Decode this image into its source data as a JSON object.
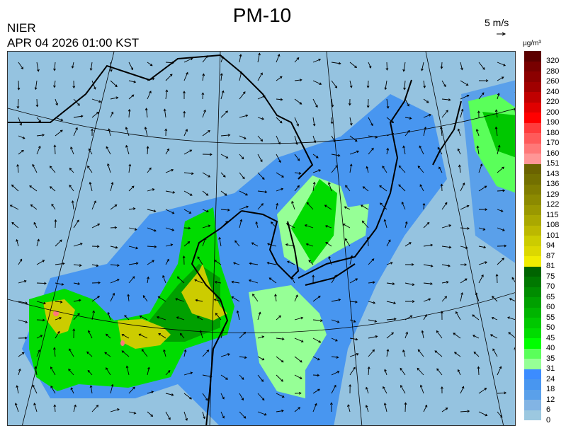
{
  "header": {
    "title": "PM-10",
    "organization": "NIER",
    "datetime": "APR 04 2026 01:00 KST",
    "wind_reference": "5 m/s"
  },
  "map": {
    "variable": "PM-10",
    "region": "East Asia (China, Korea, Japan)",
    "background_color": "#95c3e0",
    "wind_vectors": true,
    "coastlines": true,
    "graticule": true
  },
  "legend": {
    "unit": "µg/m³",
    "labels": [
      "320",
      "280",
      "260",
      "240",
      "220",
      "200",
      "190",
      "180",
      "170",
      "160",
      "151",
      "143",
      "136",
      "129",
      "122",
      "115",
      "108",
      "101",
      "94",
      "87",
      "81",
      "75",
      "70",
      "65",
      "60",
      "55",
      "50",
      "45",
      "40",
      "35",
      "31",
      "24",
      "18",
      "12",
      "6",
      "0"
    ],
    "colors": [
      "#5c0000",
      "#780000",
      "#8c0000",
      "#a00000",
      "#c00000",
      "#e00000",
      "#ff0000",
      "#ff3c3c",
      "#ff5a5a",
      "#ff7878",
      "#ff9696",
      "#6b6300",
      "#737000",
      "#807d00",
      "#8c8a00",
      "#9a9800",
      "#aaa800",
      "#bcb800",
      "#cccc00",
      "#dcd800",
      "#f0ec00",
      "#006400",
      "#007800",
      "#008c00",
      "#00a000",
      "#00b400",
      "#00c800",
      "#00dc00",
      "#00ff00",
      "#5aff5a",
      "#96ff96",
      "#3c8cff",
      "#4896f0",
      "#5aa0ea",
      "#82b4e4",
      "#9cc8e0"
    ]
  }
}
